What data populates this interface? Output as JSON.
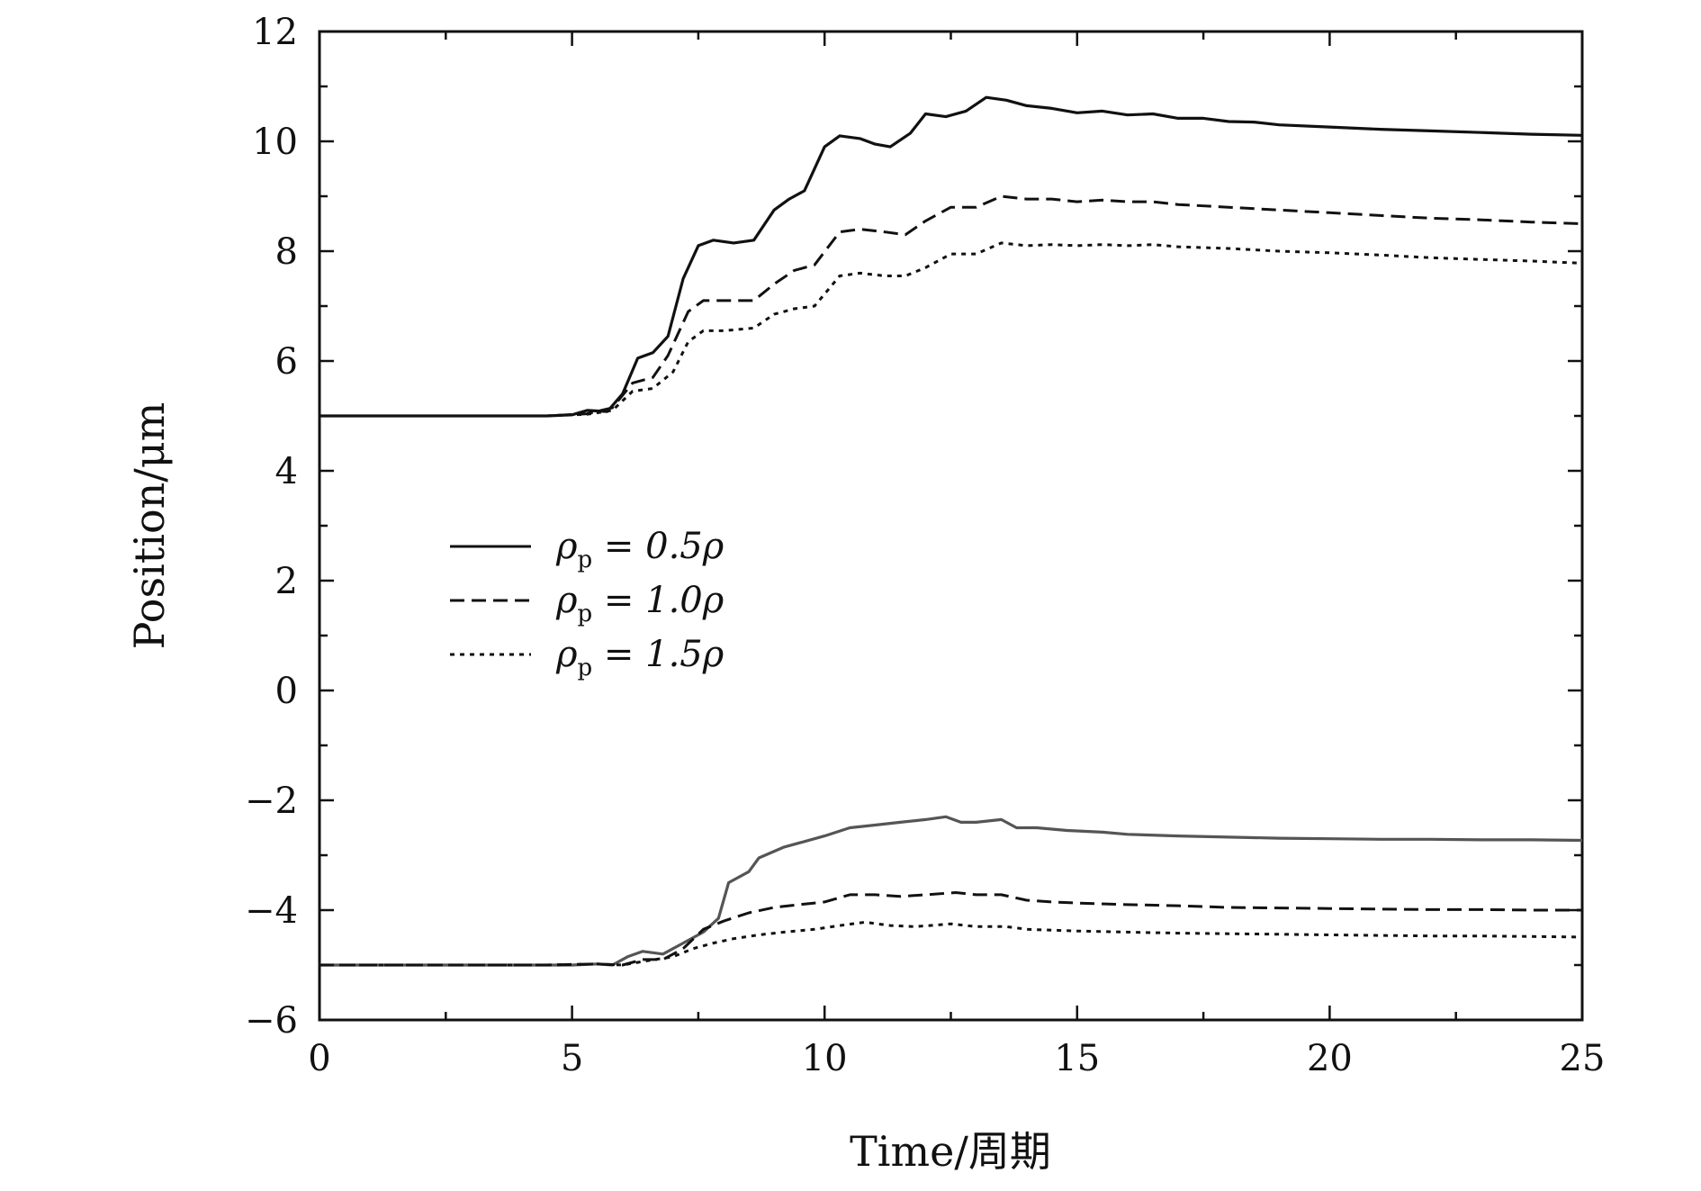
{
  "chart_data": {
    "type": "line",
    "xlabel": "Time/周期",
    "ylabel": "Position/μm",
    "xlim": [
      0,
      25
    ],
    "ylim": [
      -6,
      12
    ],
    "x_ticks": [
      0,
      5,
      10,
      15,
      20,
      25
    ],
    "y_ticks": [
      -6,
      -4,
      -2,
      0,
      2,
      4,
      6,
      8,
      10,
      12
    ],
    "y_tick_labels": [
      "−6",
      "−4",
      "−2",
      "0",
      "2",
      "4",
      "6",
      "8",
      "10",
      "12"
    ],
    "grid": false,
    "legend_position": "center-left",
    "legend": [
      {
        "symbol": "ρ",
        "subscript": "p",
        "rest": " = 0.5ρ",
        "style": "solid"
      },
      {
        "symbol": "ρ",
        "subscript": "p",
        "rest": " = 1.0ρ",
        "style": "dashed"
      },
      {
        "symbol": "ρ",
        "subscript": "p",
        "rest": " = 1.5ρ",
        "style": "dotted"
      }
    ],
    "series": [
      {
        "group": "upper",
        "style": "solid",
        "color": "#111111",
        "points": [
          [
            0,
            5
          ],
          [
            4.5,
            5
          ],
          [
            5,
            5.02
          ],
          [
            5.3,
            5.1
          ],
          [
            5.7,
            5.08
          ],
          [
            6,
            5.4
          ],
          [
            6.3,
            6.05
          ],
          [
            6.6,
            6.15
          ],
          [
            6.9,
            6.45
          ],
          [
            7.2,
            7.5
          ],
          [
            7.5,
            8.1
          ],
          [
            7.8,
            8.2
          ],
          [
            8.2,
            8.15
          ],
          [
            8.6,
            8.2
          ],
          [
            9,
            8.75
          ],
          [
            9.3,
            8.95
          ],
          [
            9.6,
            9.1
          ],
          [
            10,
            9.9
          ],
          [
            10.3,
            10.1
          ],
          [
            10.7,
            10.05
          ],
          [
            11,
            9.95
          ],
          [
            11.3,
            9.9
          ],
          [
            11.7,
            10.15
          ],
          [
            12,
            10.5
          ],
          [
            12.4,
            10.45
          ],
          [
            12.8,
            10.55
          ],
          [
            13.2,
            10.8
          ],
          [
            13.6,
            10.75
          ],
          [
            14,
            10.65
          ],
          [
            14.5,
            10.6
          ],
          [
            15,
            10.52
          ],
          [
            15.5,
            10.55
          ],
          [
            16,
            10.48
          ],
          [
            16.5,
            10.5
          ],
          [
            17,
            10.42
          ],
          [
            17.5,
            10.42
          ],
          [
            18,
            10.36
          ],
          [
            18.5,
            10.35
          ],
          [
            19,
            10.3
          ],
          [
            20,
            10.26
          ],
          [
            21,
            10.22
          ],
          [
            22,
            10.19
          ],
          [
            23,
            10.16
          ],
          [
            24,
            10.13
          ],
          [
            25,
            10.11
          ]
        ]
      },
      {
        "group": "upper",
        "style": "dashed",
        "color": "#111111",
        "points": [
          [
            0,
            5
          ],
          [
            4.5,
            5
          ],
          [
            5.3,
            5.04
          ],
          [
            5.8,
            5.15
          ],
          [
            6.2,
            5.6
          ],
          [
            6.6,
            5.7
          ],
          [
            6.9,
            6.1
          ],
          [
            7.3,
            6.9
          ],
          [
            7.6,
            7.1
          ],
          [
            8,
            7.1
          ],
          [
            8.6,
            7.1
          ],
          [
            9,
            7.4
          ],
          [
            9.4,
            7.65
          ],
          [
            9.8,
            7.75
          ],
          [
            10.3,
            8.35
          ],
          [
            10.7,
            8.4
          ],
          [
            11.2,
            8.35
          ],
          [
            11.6,
            8.3
          ],
          [
            12,
            8.55
          ],
          [
            12.5,
            8.8
          ],
          [
            13,
            8.8
          ],
          [
            13.5,
            9.0
          ],
          [
            14,
            8.95
          ],
          [
            14.5,
            8.95
          ],
          [
            15,
            8.9
          ],
          [
            15.5,
            8.93
          ],
          [
            16,
            8.9
          ],
          [
            16.5,
            8.9
          ],
          [
            17,
            8.85
          ],
          [
            18,
            8.8
          ],
          [
            19,
            8.75
          ],
          [
            20,
            8.7
          ],
          [
            21,
            8.65
          ],
          [
            22,
            8.6
          ],
          [
            23,
            8.57
          ],
          [
            24,
            8.53
          ],
          [
            25,
            8.5
          ]
        ]
      },
      {
        "group": "upper",
        "style": "dotted",
        "color": "#111111",
        "points": [
          [
            0,
            5
          ],
          [
            4.5,
            5
          ],
          [
            5.3,
            5.03
          ],
          [
            5.8,
            5.1
          ],
          [
            6.2,
            5.45
          ],
          [
            6.6,
            5.5
          ],
          [
            7,
            5.8
          ],
          [
            7.3,
            6.35
          ],
          [
            7.6,
            6.55
          ],
          [
            8,
            6.55
          ],
          [
            8.6,
            6.6
          ],
          [
            9,
            6.85
          ],
          [
            9.4,
            6.95
          ],
          [
            9.8,
            7.0
          ],
          [
            10.3,
            7.55
          ],
          [
            10.7,
            7.6
          ],
          [
            11.2,
            7.55
          ],
          [
            11.6,
            7.55
          ],
          [
            12,
            7.7
          ],
          [
            12.5,
            7.95
          ],
          [
            13,
            7.95
          ],
          [
            13.5,
            8.15
          ],
          [
            14,
            8.1
          ],
          [
            14.5,
            8.12
          ],
          [
            15,
            8.1
          ],
          [
            15.5,
            8.12
          ],
          [
            16,
            8.1
          ],
          [
            16.5,
            8.12
          ],
          [
            17,
            8.08
          ],
          [
            18,
            8.05
          ],
          [
            19,
            8.0
          ],
          [
            20,
            7.97
          ],
          [
            21,
            7.93
          ],
          [
            22,
            7.88
          ],
          [
            23,
            7.85
          ],
          [
            24,
            7.82
          ],
          [
            25,
            7.78
          ]
        ]
      },
      {
        "group": "lower",
        "style": "solid",
        "color": "#555555",
        "points": [
          [
            0,
            -5
          ],
          [
            4.5,
            -5
          ],
          [
            5,
            -5
          ],
          [
            5.5,
            -4.98
          ],
          [
            5.8,
            -5
          ],
          [
            6.1,
            -4.85
          ],
          [
            6.4,
            -4.75
          ],
          [
            6.8,
            -4.8
          ],
          [
            7.2,
            -4.6
          ],
          [
            7.6,
            -4.4
          ],
          [
            7.9,
            -4.15
          ],
          [
            8.1,
            -3.5
          ],
          [
            8.5,
            -3.3
          ],
          [
            8.7,
            -3.05
          ],
          [
            9.2,
            -2.85
          ],
          [
            9.6,
            -2.75
          ],
          [
            10,
            -2.65
          ],
          [
            10.5,
            -2.5
          ],
          [
            11,
            -2.45
          ],
          [
            11.5,
            -2.4
          ],
          [
            12,
            -2.35
          ],
          [
            12.4,
            -2.3
          ],
          [
            12.7,
            -2.4
          ],
          [
            13,
            -2.4
          ],
          [
            13.5,
            -2.35
          ],
          [
            13.8,
            -2.5
          ],
          [
            14.2,
            -2.5
          ],
          [
            14.8,
            -2.55
          ],
          [
            15.5,
            -2.58
          ],
          [
            16,
            -2.62
          ],
          [
            17,
            -2.65
          ],
          [
            18,
            -2.67
          ],
          [
            19,
            -2.69
          ],
          [
            20,
            -2.7
          ],
          [
            21,
            -2.71
          ],
          [
            22,
            -2.71
          ],
          [
            23,
            -2.72
          ],
          [
            24,
            -2.72
          ],
          [
            25,
            -2.73
          ]
        ]
      },
      {
        "group": "lower",
        "style": "dashed",
        "color": "#111111",
        "points": [
          [
            0,
            -5
          ],
          [
            4.5,
            -5
          ],
          [
            5.5,
            -4.98
          ],
          [
            6,
            -5
          ],
          [
            6.4,
            -4.9
          ],
          [
            6.8,
            -4.9
          ],
          [
            7.2,
            -4.7
          ],
          [
            7.6,
            -4.35
          ],
          [
            8,
            -4.2
          ],
          [
            8.5,
            -4.05
          ],
          [
            9,
            -3.95
          ],
          [
            9.5,
            -3.9
          ],
          [
            10,
            -3.85
          ],
          [
            10.5,
            -3.72
          ],
          [
            11,
            -3.72
          ],
          [
            11.5,
            -3.75
          ],
          [
            12,
            -3.72
          ],
          [
            12.6,
            -3.68
          ],
          [
            13,
            -3.72
          ],
          [
            13.5,
            -3.72
          ],
          [
            14,
            -3.82
          ],
          [
            14.5,
            -3.85
          ],
          [
            15,
            -3.87
          ],
          [
            16,
            -3.9
          ],
          [
            17,
            -3.92
          ],
          [
            18,
            -3.95
          ],
          [
            19,
            -3.96
          ],
          [
            20,
            -3.97
          ],
          [
            21,
            -3.98
          ],
          [
            22,
            -3.99
          ],
          [
            23,
            -3.99
          ],
          [
            24,
            -4.0
          ],
          [
            25,
            -4.0
          ]
        ]
      },
      {
        "group": "lower",
        "style": "dotted",
        "color": "#111111",
        "points": [
          [
            0,
            -5
          ],
          [
            4.5,
            -5
          ],
          [
            5.5,
            -4.98
          ],
          [
            6,
            -5
          ],
          [
            6.5,
            -4.92
          ],
          [
            7,
            -4.85
          ],
          [
            7.4,
            -4.7
          ],
          [
            7.8,
            -4.6
          ],
          [
            8.2,
            -4.52
          ],
          [
            8.7,
            -4.45
          ],
          [
            9.2,
            -4.4
          ],
          [
            9.8,
            -4.35
          ],
          [
            10.3,
            -4.28
          ],
          [
            10.8,
            -4.22
          ],
          [
            11.3,
            -4.28
          ],
          [
            11.8,
            -4.3
          ],
          [
            12.5,
            -4.25
          ],
          [
            13,
            -4.3
          ],
          [
            13.6,
            -4.3
          ],
          [
            14,
            -4.35
          ],
          [
            15,
            -4.38
          ],
          [
            16,
            -4.4
          ],
          [
            17,
            -4.42
          ],
          [
            18,
            -4.43
          ],
          [
            19,
            -4.44
          ],
          [
            20,
            -4.45
          ],
          [
            21,
            -4.46
          ],
          [
            22,
            -4.47
          ],
          [
            23,
            -4.47
          ],
          [
            24,
            -4.48
          ],
          [
            25,
            -4.49
          ]
        ]
      }
    ]
  }
}
